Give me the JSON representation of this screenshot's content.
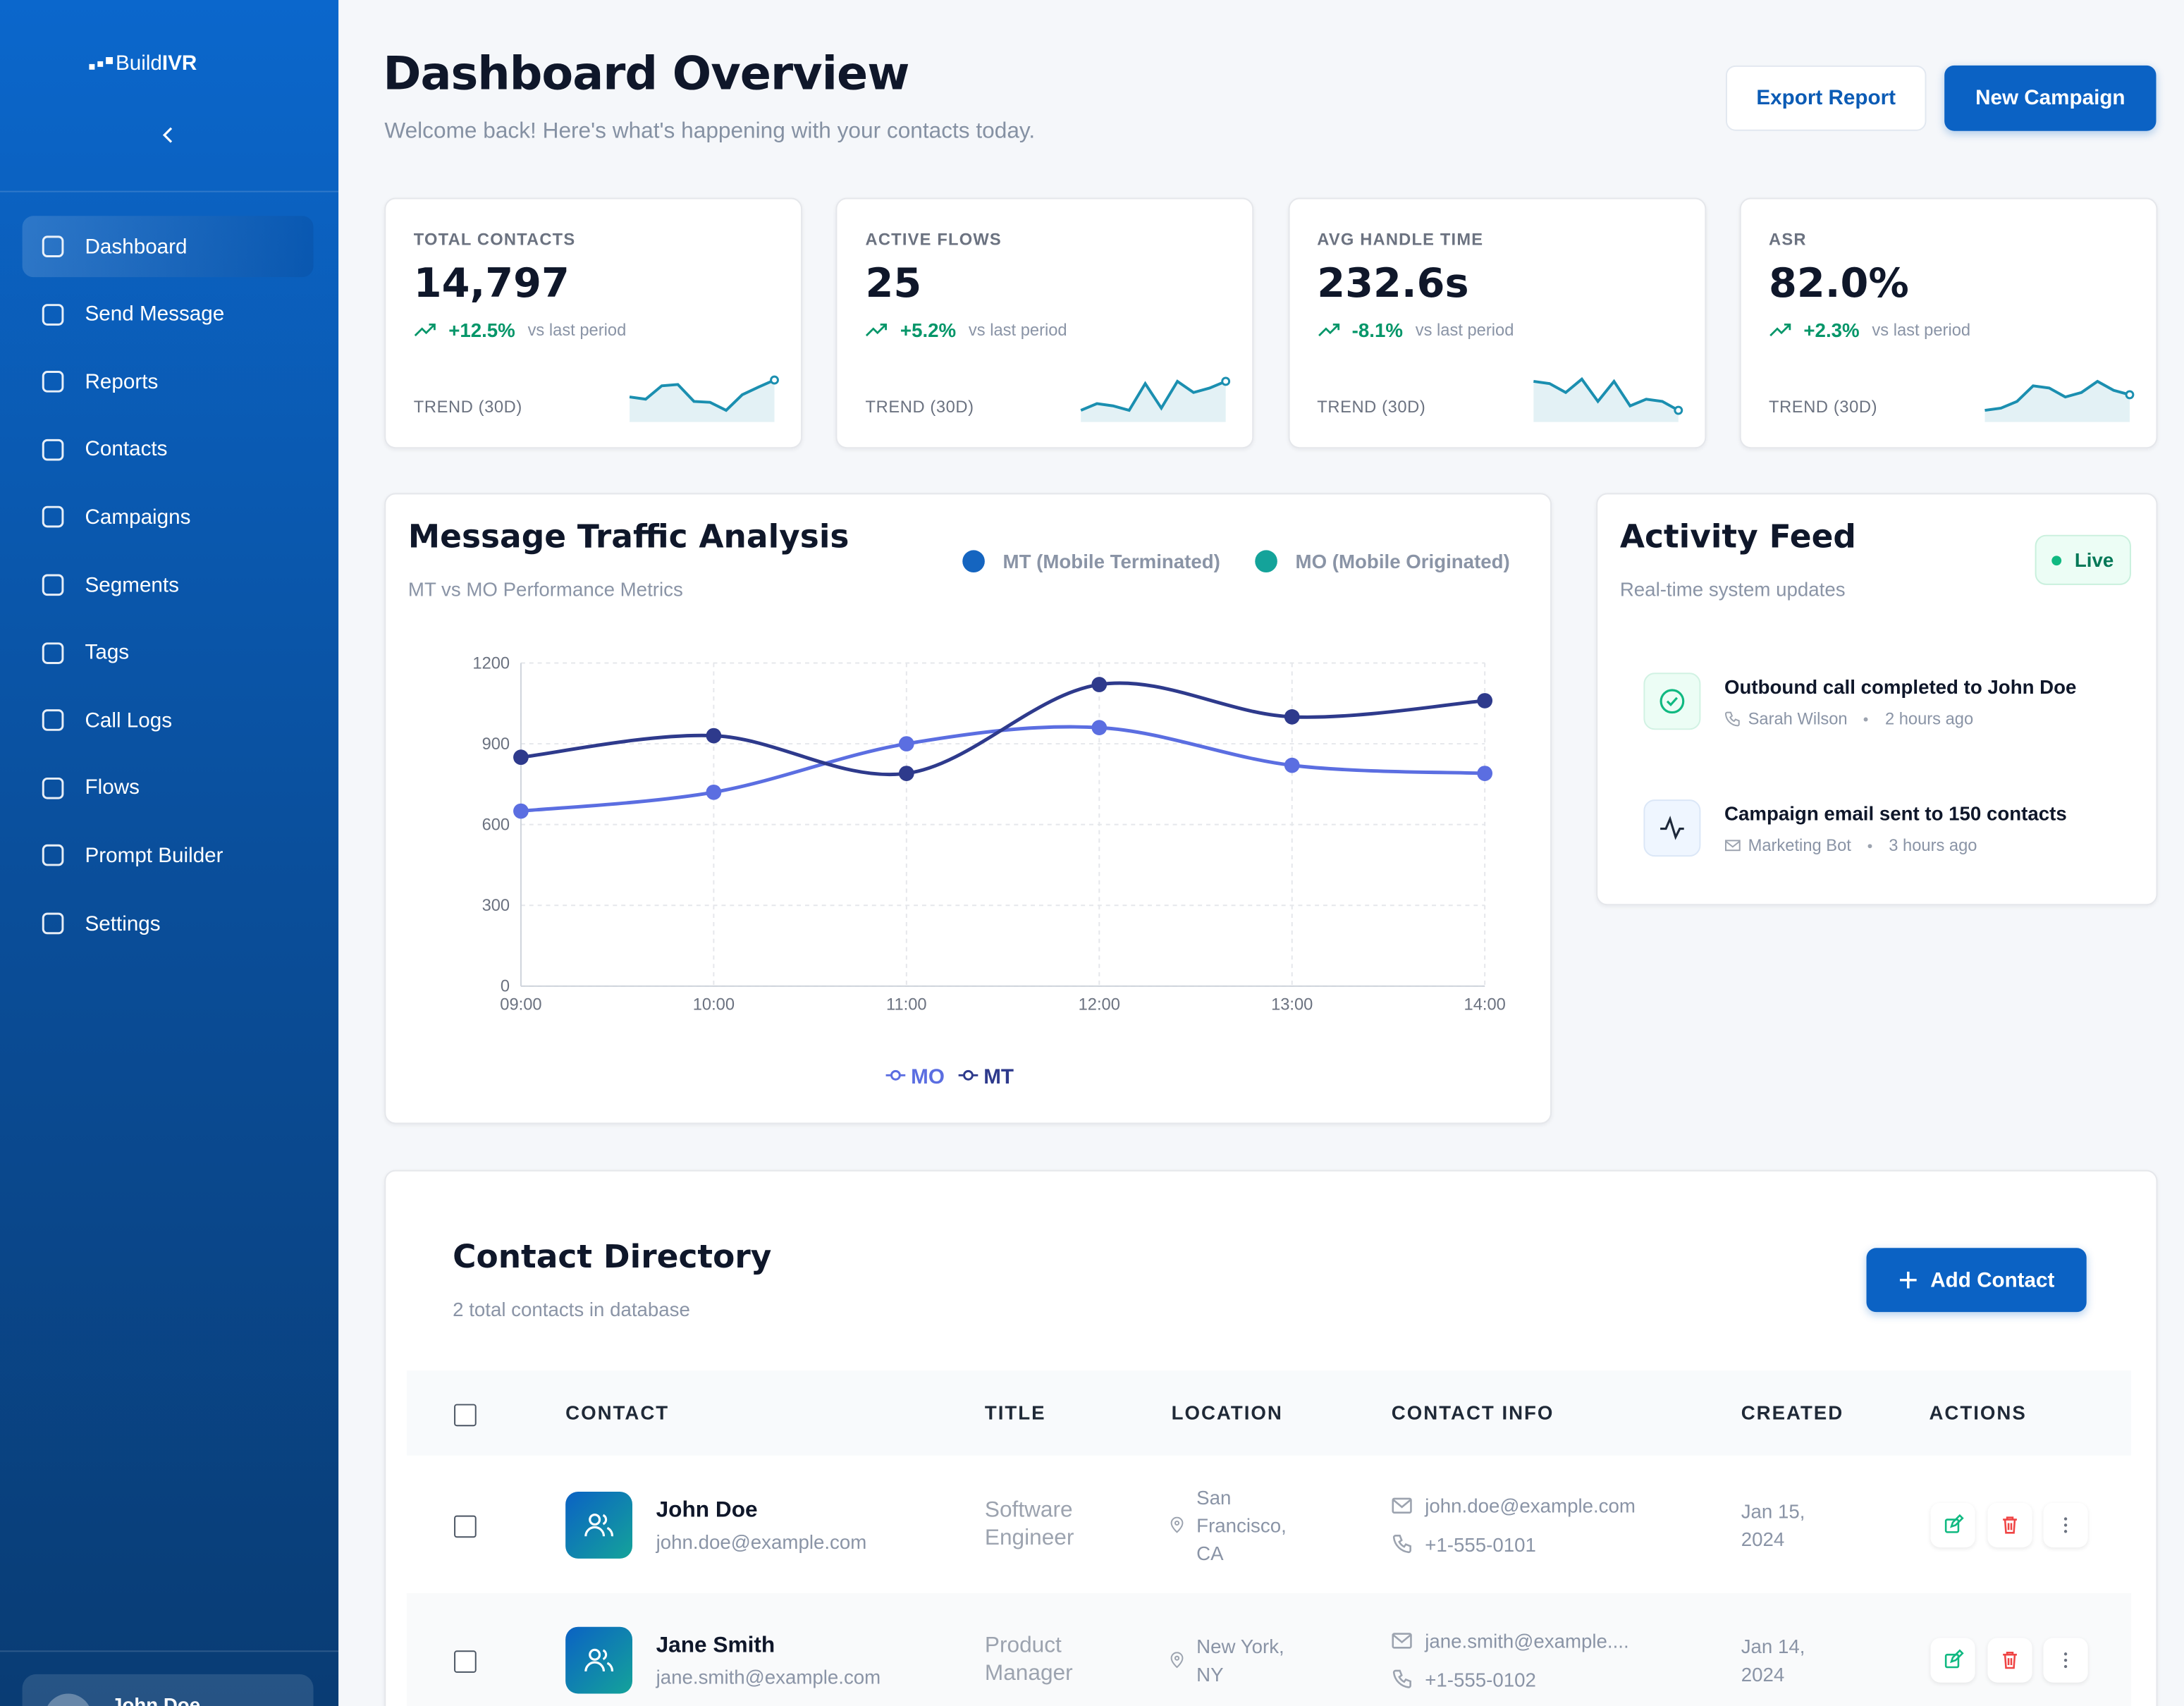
{
  "sidebar": {
    "logo": {
      "prefix": "Build",
      "suffix": "IVR"
    },
    "nav": [
      "Dashboard",
      "Send Message",
      "Reports",
      "Contacts",
      "Campaigns",
      "Segments",
      "Tags",
      "Call Logs",
      "Flows",
      "Prompt Builder",
      "Settings"
    ],
    "user": "John Doe"
  },
  "header": {
    "title": "Dashboard Overview",
    "subtitle": "Welcome back! Here's what's happening with your contacts today.",
    "buttons": [
      "Export Report",
      "New Campaign"
    ]
  },
  "stats": [
    {
      "label": "TOTAL CONTACTS",
      "value": "14,797",
      "change": "+12.5%",
      "comparison": "vs last period",
      "trend_label": "TREND (30D)",
      "trend": [
        50,
        45,
        75,
        78,
        40,
        38,
        20,
        55,
        72,
        88
      ]
    },
    {
      "label": "ACTIVE FLOWS",
      "value": "25",
      "change": "+5.2%",
      "comparison": "vs last period",
      "trend_label": "TREND (30D)",
      "trend": [
        20,
        35,
        30,
        20,
        80,
        25,
        85,
        60,
        70,
        85
      ]
    },
    {
      "label": "AVG HANDLE TIME",
      "value": "232.6s",
      "change": "-8.1%",
      "comparison": "vs last period",
      "trend_label": "TREND (30D)",
      "trend": [
        85,
        80,
        60,
        90,
        40,
        85,
        30,
        45,
        40,
        20
      ]
    },
    {
      "label": "ASR",
      "value": "82.0%",
      "change": "+2.3%",
      "comparison": "vs last period",
      "trend_label": "TREND (30D)",
      "trend": [
        20,
        25,
        40,
        75,
        70,
        50,
        60,
        85,
        65,
        55
      ]
    }
  ],
  "chart_data": {
    "type": "line",
    "title": "Message Traffic Analysis",
    "subtitle": "MT vs MO Performance Metrics",
    "header_legend": [
      {
        "label": "MT (Mobile Terminated)",
        "color": "#1565c0"
      },
      {
        "label": "MO (Mobile Originated)",
        "color": "#14a39a"
      }
    ],
    "categories": [
      "09:00",
      "10:00",
      "11:00",
      "12:00",
      "13:00",
      "14:00"
    ],
    "series": [
      {
        "name": "MO",
        "color": "#5b6ee1",
        "values": [
          650,
          720,
          900,
          960,
          820,
          790
        ]
      },
      {
        "name": "MT",
        "color": "#2e3a8c",
        "values": [
          850,
          930,
          790,
          1120,
          1000,
          1060
        ]
      }
    ],
    "ylim": [
      0,
      1200
    ],
    "yticks": [
      0,
      300,
      600,
      900,
      1200
    ],
    "grid": true
  },
  "activity": {
    "title": "Activity Feed",
    "subtitle": "Real-time system updates",
    "badge": "Live",
    "items": [
      {
        "text": "Outbound call completed to John Doe",
        "actor": "Sarah Wilson",
        "time": "2 hours ago"
      },
      {
        "text": "Campaign email sent to 150 contacts",
        "actor": "Marketing Bot",
        "time": "3 hours ago"
      }
    ]
  },
  "contacts": {
    "title": "Contact Directory",
    "subtitle": "2 total contacts in database",
    "button": "Add Contact",
    "columns": [
      "CONTACT",
      "TITLE",
      "LOCATION",
      "CONTACT INFO",
      "CREATED",
      "ACTIONS"
    ],
    "rows": [
      {
        "name": "John Doe",
        "email": "john.doe@example.com",
        "title": "Software Engineer",
        "location": "San Francisco, CA",
        "contact_email": "john.doe@example.com",
        "phone": "+1-555-0101",
        "created": "Jan 15, 2024"
      },
      {
        "name": "Jane Smith",
        "email": "jane.smith@example.com",
        "title": "Product Manager",
        "location": "New York, NY",
        "contact_email": "jane.smith@example....",
        "phone": "+1-555-0102",
        "created": "Jan 14, 2024"
      }
    ]
  }
}
